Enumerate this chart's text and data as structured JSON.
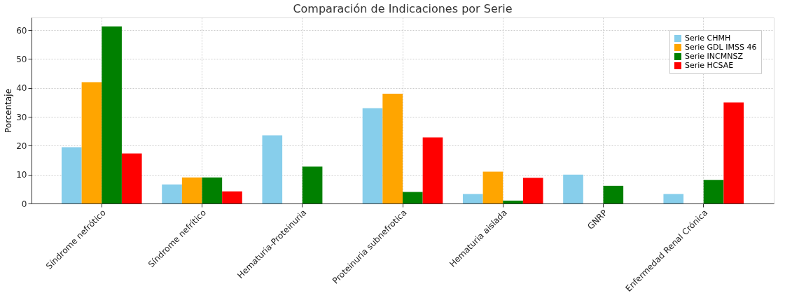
{
  "chart_data": {
    "type": "bar",
    "title": "Comparación de Indicaciones por Serie",
    "ylabel": "Porcentaje",
    "categories": [
      "Síndrome nefrótico",
      "Síndrome nefrítico",
      "Hematuria-Proteinuria",
      "Proteinuria subnefrotica",
      "Hematuria aislada",
      "GNRP",
      "Enfermedad Renal Crónica"
    ],
    "series": [
      {
        "name": "Serie CHMH",
        "color": "#87ceeb",
        "values": [
          19.5,
          6.6,
          23.6,
          33,
          3.3,
          10,
          3.3
        ]
      },
      {
        "name": "Serie GDL IMSS 46",
        "color": "#ffa500",
        "values": [
          42,
          9,
          0,
          38,
          11,
          0,
          0
        ]
      },
      {
        "name": "Serie INCMNSZ",
        "color": "#008000",
        "values": [
          61.3,
          9,
          12.8,
          4,
          1,
          6.1,
          8.2
        ]
      },
      {
        "name": "Serie HCSAE",
        "color": "#ff0000",
        "values": [
          17.3,
          4.2,
          0,
          22.9,
          8.9,
          0,
          35
        ]
      }
    ],
    "ylim": [
      0,
      64.4
    ],
    "yticks": [
      0,
      10,
      20,
      30,
      40,
      50,
      60
    ],
    "grid": true,
    "legend": "top right"
  }
}
